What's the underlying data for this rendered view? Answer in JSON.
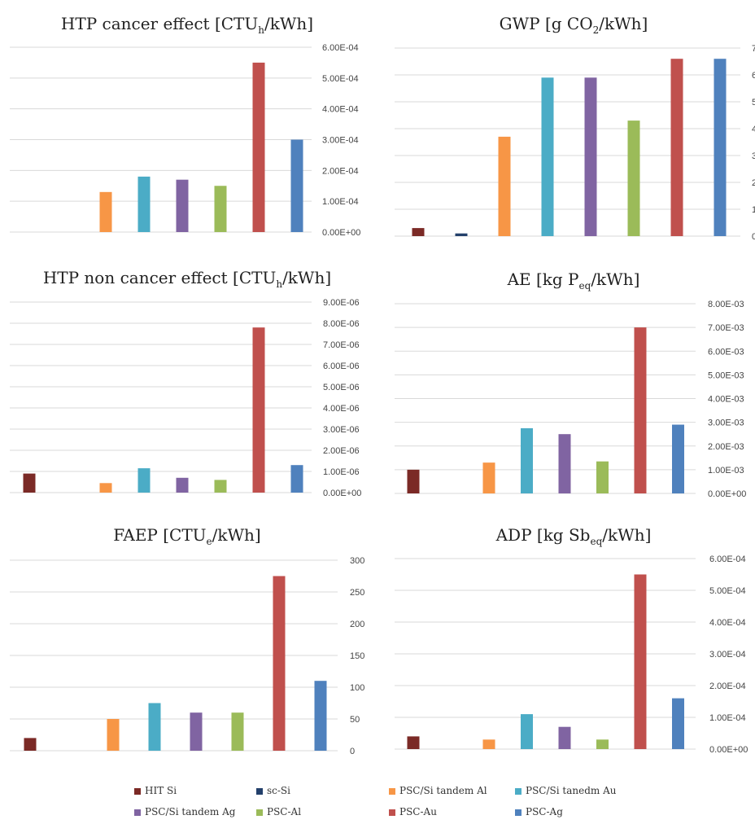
{
  "legend": [
    {
      "name": "HIT Si",
      "color": "#7b2a26"
    },
    {
      "name": "sc-Si",
      "color": "#23406b"
    },
    {
      "name": "PSC/Si tandem Al",
      "color": "#f79646"
    },
    {
      "name": "PSC/Si tanedm Au",
      "color": "#4bacc6"
    },
    {
      "name": "PSC/Si tandem Ag",
      "color": "#8064a2"
    },
    {
      "name": "PSC-Al",
      "color": "#9bbb59"
    },
    {
      "name": "PSC-Au",
      "color": "#c0504d"
    },
    {
      "name": "PSC-Ag",
      "color": "#4f81bd"
    }
  ],
  "chart_data": [
    {
      "type": "bar",
      "title": "HTP cancer effect [CTU",
      "title_sub": "h",
      "title_end": "/kWh]",
      "categories": [
        "HIT Si",
        "sc-Si",
        "PSC/Si tandem Al",
        "PSC/Si tanedm Au",
        "PSC/Si tandem Ag",
        "PSC-Al",
        "PSC-Au",
        "PSC-Ag"
      ],
      "values": [
        0,
        0,
        0.00013,
        0.00018,
        0.00017,
        0.00015,
        0.00055,
        0.0003
      ],
      "ylim": [
        0,
        0.0006
      ],
      "yticks": [
        0,
        0.0001,
        0.0002,
        0.0003,
        0.0004,
        0.0005,
        0.0006
      ],
      "ytick_labels": [
        "0.00E+00",
        "1.00E-04",
        "2.00E-04",
        "3.00E-04",
        "4.00E-04",
        "5.00E-04",
        "6.00E-04"
      ],
      "grid": true
    },
    {
      "type": "bar",
      "title": "GWP [g CO",
      "title_sub": "2",
      "title_end": "/kWh]",
      "categories": [
        "HIT Si",
        "sc-Si",
        "PSC/Si tandem Al",
        "PSC/Si tanedm Au",
        "PSC/Si tandem Ag",
        "PSC-Al",
        "PSC-Au",
        "PSC-Ag"
      ],
      "values": [
        30,
        10,
        370,
        590,
        590,
        430,
        660,
        660
      ],
      "ylim": [
        0,
        700
      ],
      "yticks": [
        0,
        100,
        200,
        300,
        400,
        500,
        600,
        700
      ],
      "ytick_labels": [
        "0",
        "1",
        "2",
        "3",
        "4",
        "5",
        "6",
        "7"
      ],
      "grid": true
    },
    {
      "type": "bar",
      "title": "HTP non cancer effect [CTU",
      "title_sub": "h",
      "title_end": "/kWh]",
      "categories": [
        "HIT Si",
        "sc-Si",
        "PSC/Si tandem Al",
        "PSC/Si tanedm Au",
        "PSC/Si tandem Ag",
        "PSC-Al",
        "PSC-Au",
        "PSC-Ag"
      ],
      "values": [
        9e-07,
        0,
        4.5e-07,
        1.15e-06,
        7e-07,
        6e-07,
        7.8e-06,
        1.3e-06
      ],
      "ylim": [
        0,
        9e-06
      ],
      "yticks": [
        0,
        1e-06,
        2e-06,
        3e-06,
        4e-06,
        5e-06,
        6e-06,
        7e-06,
        8e-06,
        9e-06
      ],
      "ytick_labels": [
        "0.00E+00",
        "1.00E-06",
        "2.00E-06",
        "3.00E-06",
        "4.00E-06",
        "5.00E-06",
        "6.00E-06",
        "7.00E-06",
        "8.00E-06",
        "9.00E-06"
      ],
      "grid": true
    },
    {
      "type": "bar",
      "title": "AE [kg P",
      "title_sub": "eq",
      "title_end": "/kWh]",
      "categories": [
        "HIT Si",
        "sc-Si",
        "PSC/Si tandem Al",
        "PSC/Si tanedm Au",
        "PSC/Si tandem Ag",
        "PSC-Al",
        "PSC-Au",
        "PSC-Ag"
      ],
      "values": [
        0.001,
        0,
        0.0013,
        0.00275,
        0.0025,
        0.00135,
        0.007,
        0.0029
      ],
      "ylim": [
        0,
        0.008
      ],
      "yticks": [
        0,
        0.001,
        0.002,
        0.003,
        0.004,
        0.005,
        0.006,
        0.007,
        0.008
      ],
      "ytick_labels": [
        "0.00E+00",
        "1.00E-03",
        "2.00E-03",
        "3.00E-03",
        "4.00E-03",
        "5.00E-03",
        "6.00E-03",
        "7.00E-03",
        "8.00E-03"
      ],
      "grid": true
    },
    {
      "type": "bar",
      "title": "FAEP [CTU",
      "title_sub": "e",
      "title_end": "/kWh]",
      "categories": [
        "HIT Si",
        "sc-Si",
        "PSC/Si tandem Al",
        "PSC/Si tanedm Au",
        "PSC/Si tandem Ag",
        "PSC-Al",
        "PSC-Au",
        "PSC-Ag"
      ],
      "values": [
        20,
        0,
        50,
        75,
        60,
        60,
        275,
        110
      ],
      "ylim": [
        0,
        300
      ],
      "yticks": [
        0,
        50,
        100,
        150,
        200,
        250,
        300
      ],
      "ytick_labels": [
        "0",
        "50",
        "100",
        "150",
        "200",
        "250",
        "300"
      ],
      "grid": true
    },
    {
      "type": "bar",
      "title": "ADP [kg Sb",
      "title_sub": "eq",
      "title_end": "/kWh]",
      "categories": [
        "HIT Si",
        "sc-Si",
        "PSC/Si tandem Al",
        "PSC/Si tanedm Au",
        "PSC/Si tandem Ag",
        "PSC-Al",
        "PSC-Au",
        "PSC-Ag"
      ],
      "values": [
        4e-05,
        0,
        3e-05,
        0.00011,
        7e-05,
        3e-05,
        0.00055,
        0.00016
      ],
      "ylim": [
        0,
        0.0006
      ],
      "yticks": [
        0,
        0.0001,
        0.0002,
        0.0003,
        0.0004,
        0.0005,
        0.0006
      ],
      "ytick_labels": [
        "0.00E+00",
        "1.00E-04",
        "2.00E-04",
        "3.00E-04",
        "4.00E-04",
        "5.00E-04",
        "6.00E-04"
      ],
      "grid": true
    }
  ]
}
